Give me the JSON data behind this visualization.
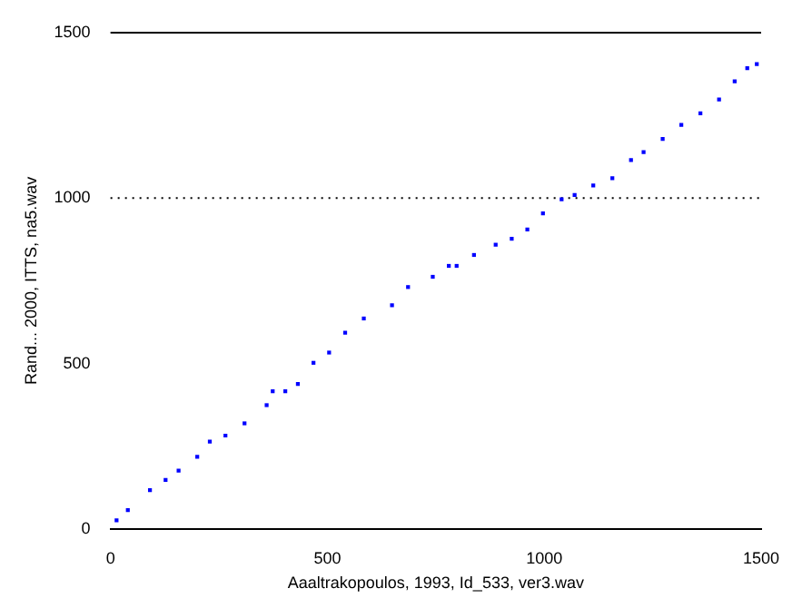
{
  "chart_data": {
    "type": "scatter",
    "xlabel": "Aaaltrakopoulos, 1993, Id_533, ver3.wav",
    "ylabel": "Rand... 2000, ITTS, na5.wav",
    "x": [
      14,
      40,
      91,
      127,
      157,
      200,
      229,
      265,
      309,
      360,
      374,
      403,
      432,
      468,
      504,
      541,
      584,
      649,
      686,
      743,
      780,
      798,
      838,
      888,
      925,
      961,
      997,
      1040,
      1070,
      1113,
      1157,
      1200,
      1229,
      1273,
      1316,
      1360,
      1403,
      1439,
      1468,
      1490
    ],
    "series": [
      {
        "color": "#0000ff",
        "values": [
          26,
          57,
          117,
          148,
          176,
          218,
          264,
          282,
          319,
          374,
          416,
          416,
          438,
          502,
          533,
          593,
          636,
          676,
          731,
          762,
          795,
          795,
          828,
          859,
          877,
          905,
          954,
          996,
          1009,
          1038,
          1060,
          1115,
          1139,
          1179,
          1221,
          1256,
          1298,
          1353,
          1393,
          1405
        ]
      }
    ],
    "xlim": [
      0,
      1500
    ],
    "ylim": [
      0,
      1500
    ],
    "xticks": [
      0,
      500,
      1000,
      1500
    ],
    "yticks": [
      0,
      500,
      1000,
      1500
    ],
    "ref_lines": [
      {
        "axis": "y",
        "value": 1500,
        "line_style": "solid",
        "color": "#000000"
      },
      {
        "axis": "y",
        "value": 1000,
        "line_style": "dotted",
        "color": "#000000"
      }
    ],
    "marker": "square",
    "grid": false,
    "legend": false
  }
}
